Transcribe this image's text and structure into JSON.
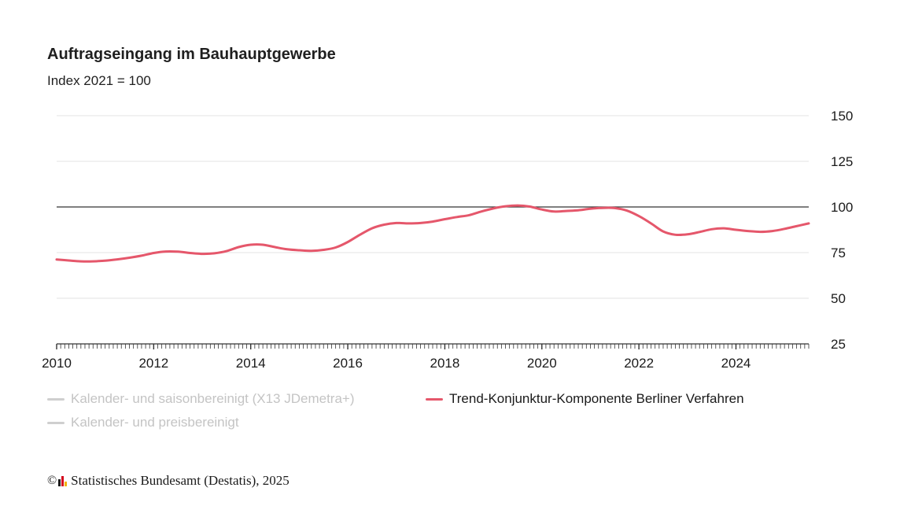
{
  "title": "Auftragseingang im Bauhauptgewerbe",
  "subtitle": "Index 2021 = 100",
  "legend": {
    "item1": "Kalender- und saisonbereinigt (X13 JDemetra+)",
    "item2": "Trend-Konjunktur-Komponente Berliner Verfahren",
    "item3": "Kalender- und preisbereinigt"
  },
  "footer": {
    "copyright_symbol": "©",
    "text": "Statistisches Bundesamt (Destatis), 2025"
  },
  "colors": {
    "trend": "#e5576b",
    "muted": "#cfcfcf",
    "grid": "#e3e3e3",
    "reference": "#333333",
    "axis": "#333333",
    "logo_1": "#1a1a1a",
    "logo_2": "#d4001a",
    "logo_3": "#f2b100"
  },
  "chart_data": {
    "type": "line",
    "title": "Auftragseingang im Bauhauptgewerbe",
    "subtitle": "Index 2021 = 100",
    "xlim": [
      2010,
      2025.5
    ],
    "ylim": [
      25,
      150
    ],
    "y_ticks": [
      25,
      50,
      75,
      100,
      125,
      150
    ],
    "x_ticks": [
      2010,
      2012,
      2014,
      2016,
      2018,
      2020,
      2022,
      2024
    ],
    "y_axis_position": "right",
    "reference_line": 100,
    "grid": true,
    "legend_position": "bottom",
    "series": [
      {
        "name": "Trend-Konjunktur-Komponente Berliner Verfahren",
        "visible": true,
        "points": [
          [
            2010.0,
            71.2
          ],
          [
            2010.25,
            70.7
          ],
          [
            2010.5,
            70.2
          ],
          [
            2010.75,
            70.2
          ],
          [
            2011.0,
            70.6
          ],
          [
            2011.25,
            71.3
          ],
          [
            2011.5,
            72.2
          ],
          [
            2011.75,
            73.3
          ],
          [
            2012.0,
            74.8
          ],
          [
            2012.25,
            75.6
          ],
          [
            2012.5,
            75.5
          ],
          [
            2012.75,
            74.8
          ],
          [
            2013.0,
            74.3
          ],
          [
            2013.25,
            74.6
          ],
          [
            2013.5,
            75.8
          ],
          [
            2013.75,
            78.0
          ],
          [
            2014.0,
            79.3
          ],
          [
            2014.25,
            79.3
          ],
          [
            2014.5,
            78.0
          ],
          [
            2014.75,
            76.8
          ],
          [
            2015.0,
            76.3
          ],
          [
            2015.25,
            76.0
          ],
          [
            2015.5,
            76.5
          ],
          [
            2015.75,
            77.8
          ],
          [
            2016.0,
            80.8
          ],
          [
            2016.25,
            84.8
          ],
          [
            2016.5,
            88.3
          ],
          [
            2016.75,
            90.3
          ],
          [
            2017.0,
            91.2
          ],
          [
            2017.25,
            91.0
          ],
          [
            2017.5,
            91.2
          ],
          [
            2017.75,
            92.0
          ],
          [
            2018.0,
            93.3
          ],
          [
            2018.25,
            94.5
          ],
          [
            2018.5,
            95.5
          ],
          [
            2018.75,
            97.5
          ],
          [
            2019.0,
            99.2
          ],
          [
            2019.25,
            100.4
          ],
          [
            2019.5,
            100.8
          ],
          [
            2019.75,
            100.2
          ],
          [
            2020.0,
            98.6
          ],
          [
            2020.25,
            97.5
          ],
          [
            2020.5,
            97.8
          ],
          [
            2020.75,
            98.2
          ],
          [
            2021.0,
            99.0
          ],
          [
            2021.25,
            99.5
          ],
          [
            2021.5,
            99.4
          ],
          [
            2021.75,
            98.0
          ],
          [
            2022.0,
            95.0
          ],
          [
            2022.25,
            91.0
          ],
          [
            2022.5,
            86.6
          ],
          [
            2022.75,
            84.8
          ],
          [
            2023.0,
            85.0
          ],
          [
            2023.25,
            86.3
          ],
          [
            2023.5,
            87.8
          ],
          [
            2023.75,
            88.3
          ],
          [
            2024.0,
            87.5
          ],
          [
            2024.25,
            86.8
          ],
          [
            2024.5,
            86.4
          ],
          [
            2024.75,
            86.8
          ],
          [
            2025.0,
            88.0
          ],
          [
            2025.25,
            89.5
          ],
          [
            2025.5,
            91.0
          ]
        ]
      },
      {
        "name": "Kalender- und saisonbereinigt (X13 JDemetra+)",
        "visible": false,
        "points": []
      },
      {
        "name": "Kalender- und preisbereinigt",
        "visible": false,
        "points": []
      }
    ]
  }
}
